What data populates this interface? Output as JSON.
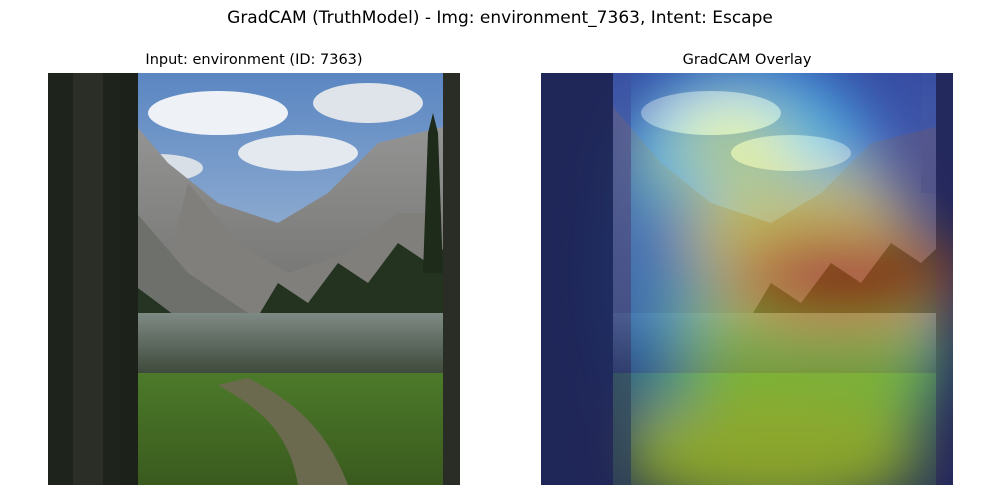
{
  "figure": {
    "title": "GradCAM (TruthModel) - Img: environment_7363, Intent: Escape"
  },
  "panels": [
    {
      "title": "Input: environment (ID: 7363)"
    },
    {
      "title": "GradCAM Overlay"
    }
  ],
  "heatmap": {
    "colormap": "jet",
    "overlay": true
  }
}
